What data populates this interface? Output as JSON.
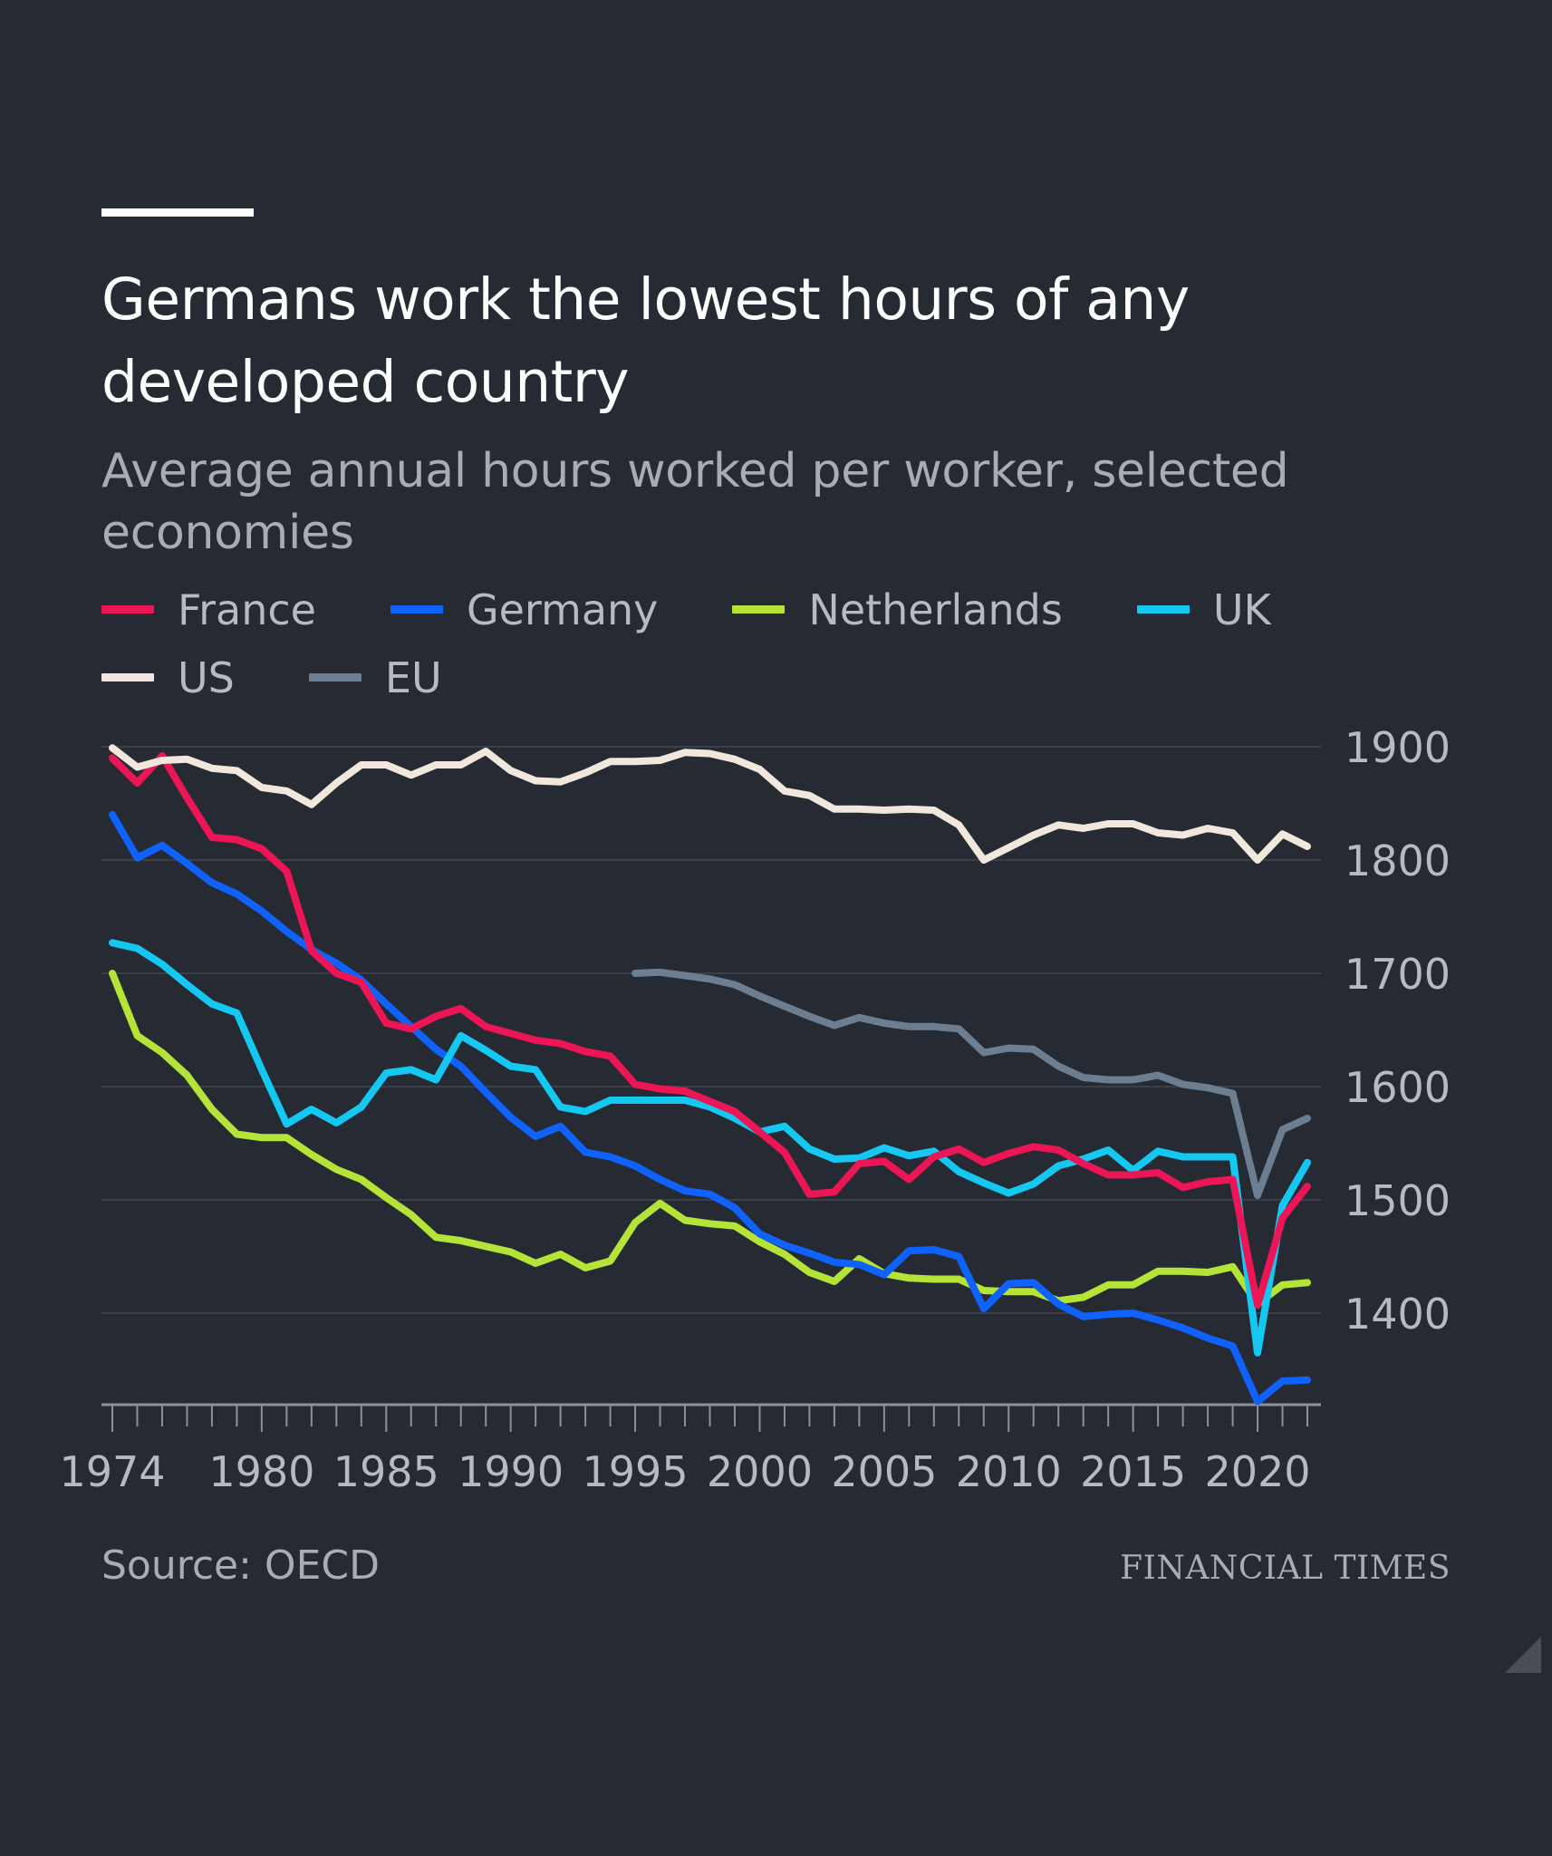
{
  "header": {
    "title": "Germans work the lowest hours of any developed country",
    "subtitle": "Average annual hours worked per worker, selected economies"
  },
  "footer": {
    "source": "Source: OECD",
    "brand": "FINANCIAL TIMES"
  },
  "chart_data": {
    "type": "line",
    "title": "Germans work the lowest hours of any developed country",
    "subtitle": "Average annual hours worked per worker, selected economies",
    "xlabel": "",
    "ylabel": "",
    "xlim": [
      1974,
      2022
    ],
    "ylim": [
      1320,
      1910
    ],
    "y_ticks": [
      1400,
      1500,
      1600,
      1700,
      1800,
      1900
    ],
    "x_tick_labels": [
      "1974",
      "1980",
      "1985",
      "1990",
      "1995",
      "2000",
      "2005",
      "2010",
      "2015",
      "2020"
    ],
    "x_tick_values": [
      1974,
      1980,
      1985,
      1990,
      1995,
      2000,
      2005,
      2010,
      2015,
      2020
    ],
    "grid": true,
    "y_axis_side": "right",
    "legend_placement": "top",
    "series": [
      {
        "name": "France",
        "color": "#ec1556",
        "start": 1974,
        "values": [
          1890,
          1868,
          1892,
          1855,
          1820,
          1818,
          1810,
          1790,
          1720,
          1700,
          1692,
          1656,
          1651,
          1662,
          1669,
          1653,
          1647,
          1641,
          1638,
          1631,
          1627,
          1602,
          1598,
          1596,
          1587,
          1578,
          1560,
          1542,
          1505,
          1507,
          1532,
          1534,
          1518,
          1538,
          1545,
          1533,
          1541,
          1547,
          1544,
          1532,
          1522,
          1522,
          1524,
          1511,
          1516,
          1518,
          1407,
          1484,
          1512
        ]
      },
      {
        "name": "Germany",
        "color": "#0f62fe",
        "start": 1974,
        "values": [
          1840,
          1802,
          1813,
          1797,
          1780,
          1770,
          1755,
          1737,
          1721,
          1709,
          1694,
          1673,
          1653,
          1633,
          1618,
          1595,
          1573,
          1556,
          1565,
          1542,
          1538,
          1530,
          1518,
          1508,
          1505,
          1493,
          1470,
          1460,
          1453,
          1445,
          1443,
          1434,
          1455,
          1456,
          1450,
          1404,
          1426,
          1427,
          1408,
          1397,
          1399,
          1400,
          1394,
          1387,
          1378,
          1371,
          1322,
          1340,
          1341
        ]
      },
      {
        "name": "Netherlands",
        "color": "#b5e337",
        "start": 1974,
        "values": [
          1700,
          1645,
          1630,
          1610,
          1580,
          1558,
          1555,
          1555,
          1540,
          1527,
          1518,
          1502,
          1487,
          1467,
          1464,
          1459,
          1454,
          1444,
          1452,
          1440,
          1446,
          1480,
          1497,
          1482,
          1479,
          1477,
          1463,
          1452,
          1436,
          1428,
          1448,
          1435,
          1431,
          1430,
          1430,
          1420,
          1419,
          1419,
          1411,
          1414,
          1425,
          1425,
          1437,
          1437,
          1436,
          1441,
          1408,
          1425,
          1427
        ]
      },
      {
        "name": "UK",
        "color": "#14c8f2",
        "start": 1974,
        "values": [
          1727,
          1722,
          1708,
          1690,
          1673,
          1665,
          1615,
          1567,
          1580,
          1568,
          1582,
          1612,
          1615,
          1606,
          1645,
          1632,
          1618,
          1615,
          1582,
          1578,
          1588,
          1588,
          1588,
          1588,
          1582,
          1572,
          1560,
          1565,
          1545,
          1536,
          1537,
          1546,
          1539,
          1543,
          1525,
          1515,
          1506,
          1514,
          1530,
          1536,
          1544,
          1526,
          1543,
          1538,
          1538,
          1538,
          1365,
          1495,
          1533
        ]
      },
      {
        "name": "US",
        "color": "#f1e7dd",
        "start": 1974,
        "values": [
          1899,
          1882,
          1888,
          1889,
          1881,
          1879,
          1864,
          1861,
          1849,
          1868,
          1884,
          1884,
          1875,
          1884,
          1884,
          1896,
          1879,
          1870,
          1869,
          1877,
          1887,
          1887,
          1888,
          1895,
          1894,
          1889,
          1880,
          1861,
          1857,
          1845,
          1845,
          1844,
          1845,
          1844,
          1831,
          1800,
          1811,
          1822,
          1831,
          1828,
          1832,
          1832,
          1824,
          1822,
          1828,
          1824,
          1800,
          1823,
          1812
        ]
      },
      {
        "name": "EU",
        "color": "#6b7e92",
        "start": 1995,
        "values": [
          1700,
          1701,
          1698,
          1695,
          1690,
          1680,
          1671,
          1662,
          1654,
          1661,
          1656,
          1653,
          1653,
          1651,
          1630,
          1634,
          1633,
          1618,
          1608,
          1606,
          1606,
          1610,
          1602,
          1599,
          1594,
          1504,
          1562,
          1572
        ]
      }
    ]
  }
}
